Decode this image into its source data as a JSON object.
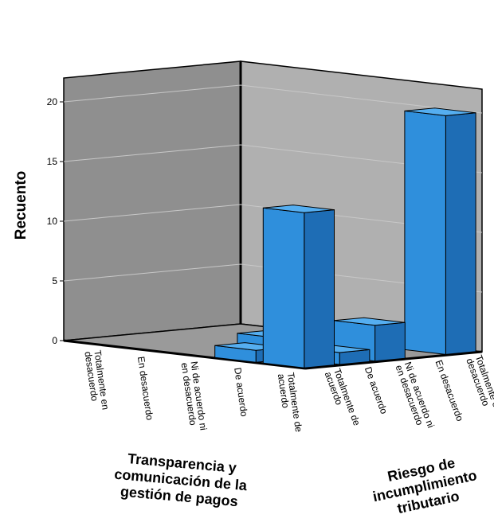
{
  "chart_data": {
    "type": "bar3d",
    "ylabel": "Recuento",
    "ylim": [
      0,
      22
    ],
    "yticks": [
      0,
      5,
      10,
      15,
      20
    ],
    "x_axis": {
      "title": [
        "Transparencia y",
        "comunicación de la",
        "gestión de pagos"
      ],
      "categories": [
        [
          "Totalmente en",
          "desacuerdo"
        ],
        [
          "En desacuerdo"
        ],
        [
          "Ni de acuerdo ni",
          "en desacuerdo"
        ],
        [
          "De acuerdo"
        ],
        [
          "Totalmente de",
          "acuerdo"
        ]
      ]
    },
    "z_axis": {
      "title": [
        "Riesgo de",
        "incumplimiento",
        "tributario"
      ],
      "categories": [
        [
          "Totalmente de",
          "acuerdo"
        ],
        [
          "De acuerdo"
        ],
        [
          "Ni de acuerdo ni",
          "en desacuerdo"
        ],
        [
          "En desacuerdo"
        ],
        [
          "Totalmente en",
          "desacuerdo"
        ]
      ]
    },
    "bars": [
      {
        "x": "Ni de acuerdo ni en desacuerdo",
        "z": "En desacuerdo",
        "value": 1
      },
      {
        "x": "Ni de acuerdo ni en desacuerdo",
        "z": "Ni de acuerdo ni en desacuerdo",
        "value": 1
      },
      {
        "x": "Totalmente de acuerdo",
        "z": "Totalmente en desacuerdo",
        "value": 20
      },
      {
        "x": "De acuerdo",
        "z": "Totalmente de acuerdo",
        "value": 1
      },
      {
        "x": "Totalmente de acuerdo",
        "z": "Totalmente de acuerdo",
        "value": 13
      },
      {
        "x": "Totalmente de acuerdo",
        "z": "Ni de acuerdo ni en desacuerdo",
        "value": 3
      },
      {
        "x": "Totalmente de acuerdo",
        "z": "De acuerdo",
        "value": 1
      }
    ],
    "colors": {
      "bar": "#2f8fdc",
      "side": "#1e6db5",
      "top": "#55aef0",
      "wall": "#b0b0b0",
      "floor": "#9a9a9a"
    }
  }
}
